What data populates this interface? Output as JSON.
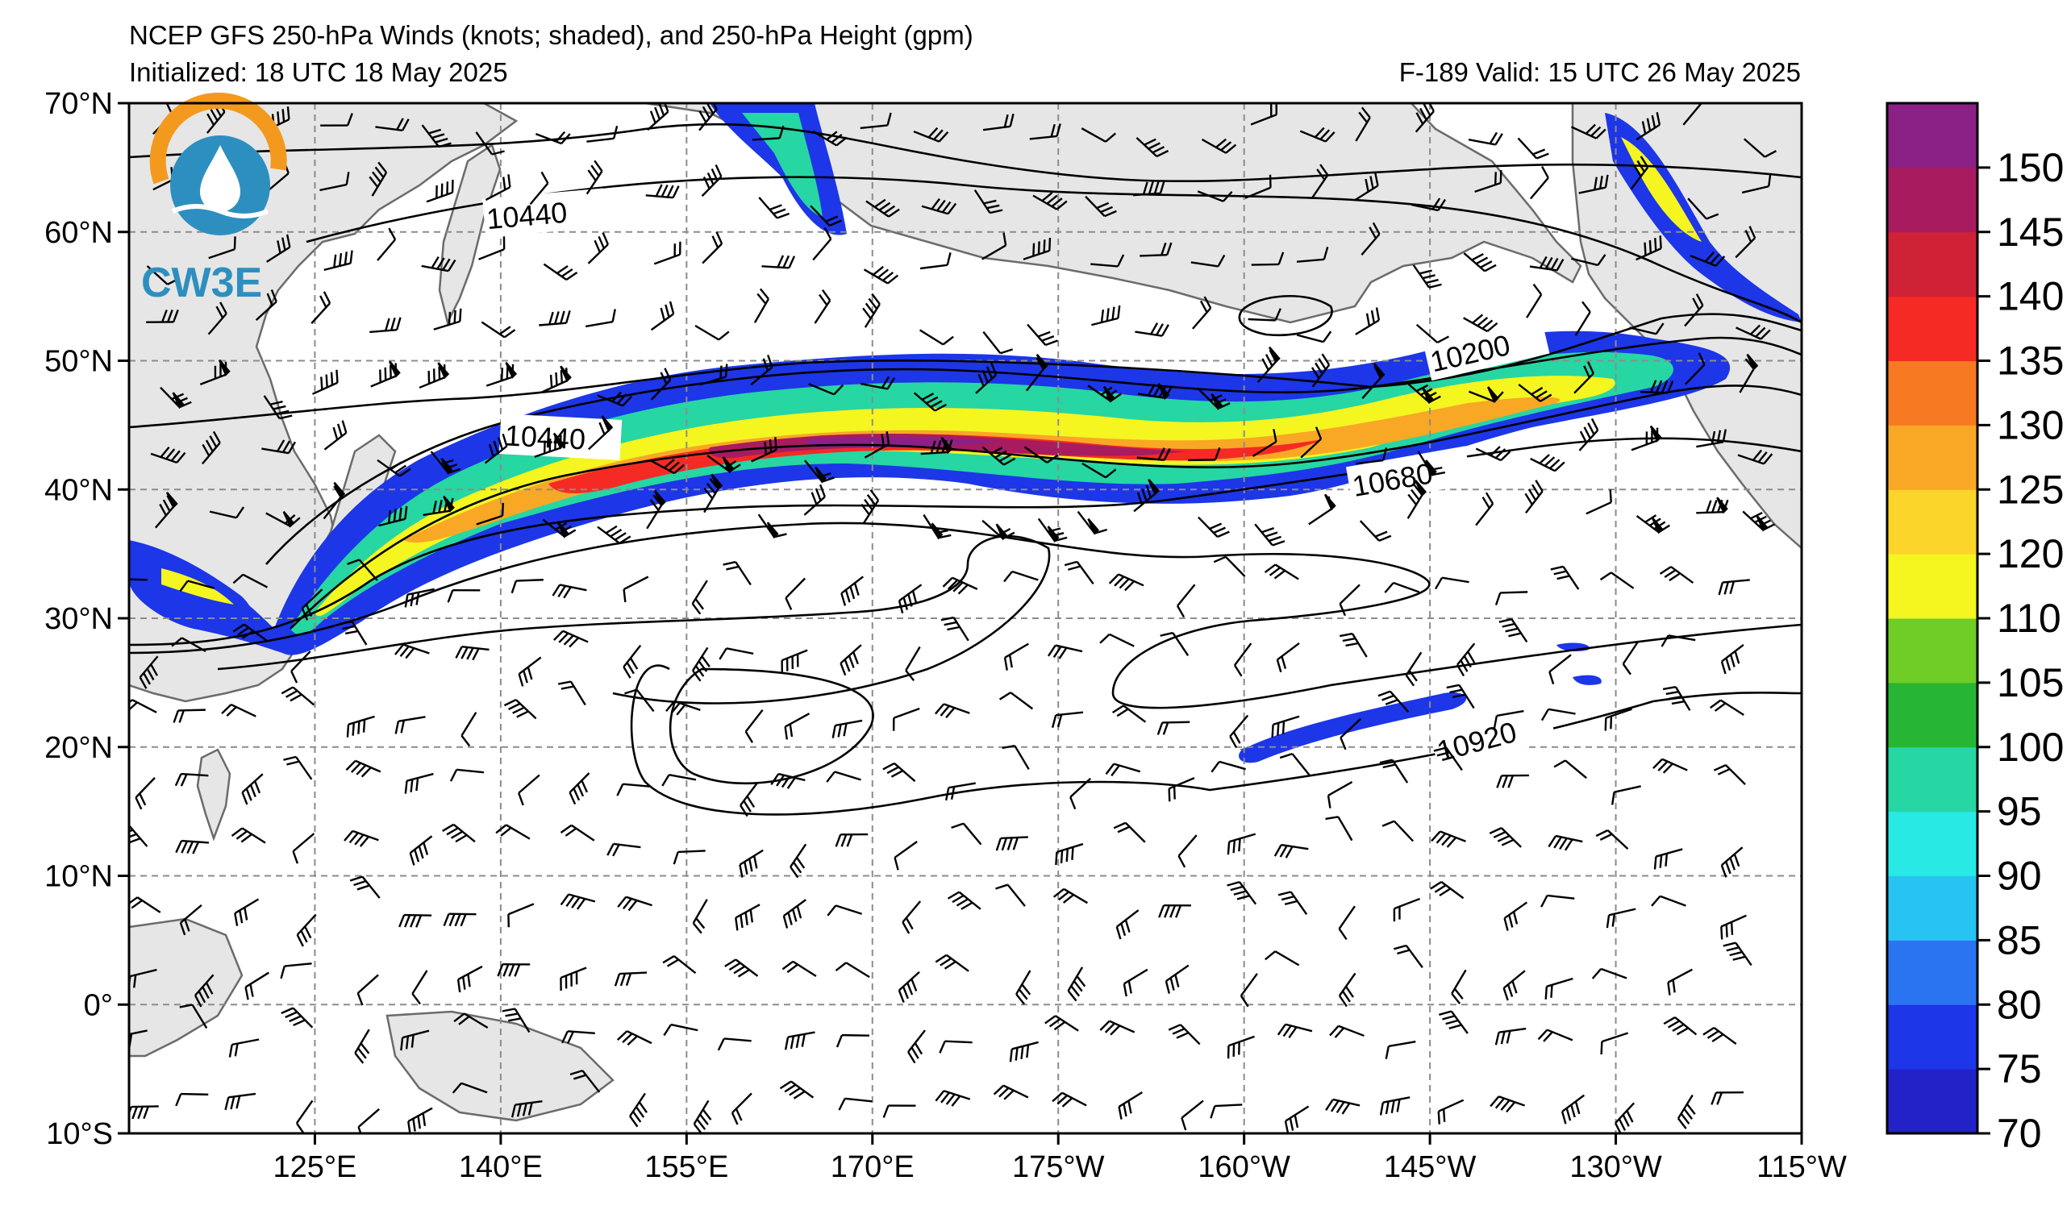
{
  "header": {
    "title": "NCEP GFS 250-hPa Winds (knots; shaded), and 250-hPa Height (gpm)",
    "initialized": "Initialized: 18 UTC 18 May 2025",
    "valid": "F-189  Valid: 15 UTC 26 May 2025"
  },
  "logo": {
    "text": "CW3E",
    "colors": {
      "arc": "#f39a1e",
      "drop": "#2d8fbf"
    }
  },
  "map": {
    "lat_labels": [
      "70°N",
      "60°N",
      "50°N",
      "40°N",
      "30°N",
      "20°N",
      "10°N",
      "0°",
      "10°S"
    ],
    "lon_labels": [
      "125°E",
      "140°E",
      "155°E",
      "170°E",
      "175°W",
      "160°W",
      "145°W",
      "130°W",
      "115°W"
    ],
    "lat_range": [
      -10,
      70
    ],
    "lon_range_east": [
      110,
      245
    ],
    "contours": [
      {
        "label": "10440",
        "value": 10440
      },
      {
        "label": "10440",
        "value": 10440
      },
      {
        "label": "10200",
        "value": 10200
      },
      {
        "label": "10680",
        "value": 10680
      },
      {
        "label": "10920",
        "value": 10920
      }
    ],
    "land_color": "#e6e6e6",
    "coast_color": "#6b6b6b",
    "grid_style": "dashed gray"
  },
  "colorbar": {
    "ticks": [
      "150",
      "145",
      "140",
      "135",
      "130",
      "125",
      "120",
      "110",
      "105",
      "100",
      "95",
      "90",
      "85",
      "80",
      "75",
      "70"
    ],
    "levels": [
      70,
      75,
      80,
      85,
      90,
      95,
      100,
      105,
      110,
      120,
      125,
      130,
      135,
      140,
      145,
      150
    ],
    "colors": [
      "#2321c8",
      "#1c36e8",
      "#2a74f2",
      "#27c3f2",
      "#28e9e3",
      "#26d6a3",
      "#27b534",
      "#6fcd26",
      "#f5f520",
      "#fbd52a",
      "#f8a825",
      "#f77a22",
      "#f52a24",
      "#cf2237",
      "#a81b5f",
      "#8b2186"
    ]
  }
}
